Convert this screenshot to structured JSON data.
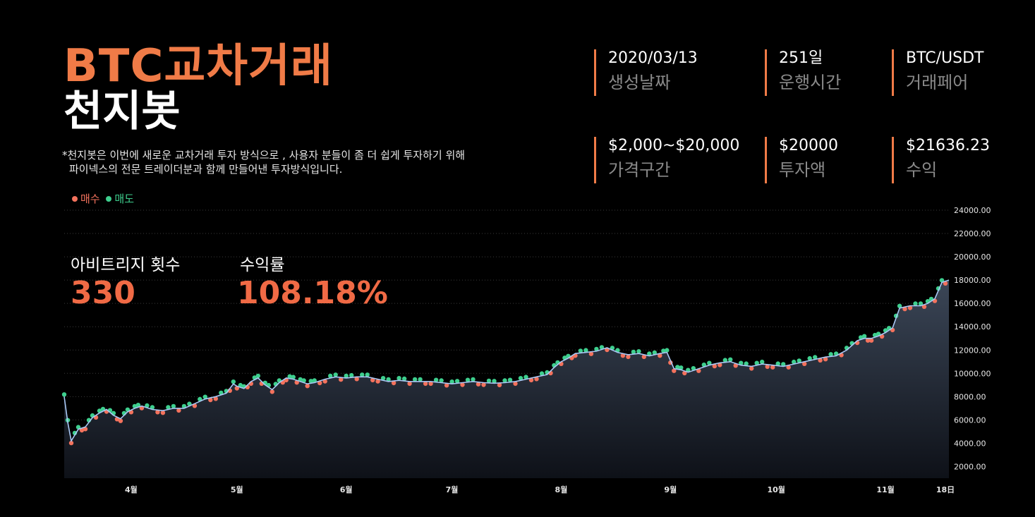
{
  "header": {
    "title_line1": "BTC교차거래",
    "title_line2": "천지봇",
    "description_line1": "*천지봇은 이번에 새로운 교차거래 투자 방식으로  , 사용자 분들이 좀 더 쉽게 투자하기 위해",
    "description_line2": "파이넥스의 전문 트레이더분과 함께 만들어낸 투자방식입니다."
  },
  "stats": [
    {
      "value": "2020/03/13",
      "label": "생성날짜"
    },
    {
      "value": "251일",
      "label": "운행시간"
    },
    {
      "value": "BTC/USDT",
      "label": "거래페어"
    },
    {
      "value": "$2,000~$20,000",
      "label": "가격구간"
    },
    {
      "value": "$20000",
      "label": "투자액"
    },
    {
      "value": "$21636.23",
      "label": "수익"
    }
  ],
  "legend": {
    "buy": "매수",
    "sell": "매도",
    "buy_color": "#f3725d",
    "sell_color": "#3ecf8e"
  },
  "metrics": {
    "arbitrage_label": "아비트리지 횟수",
    "arbitrage_value": "330",
    "return_label": "수익률",
    "return_value": "108.18%"
  },
  "colors": {
    "accent": "#f07b47",
    "line": "#a9c8f5",
    "area_top": "#3b4657",
    "area_bottom": "#0e1118"
  },
  "chart_data": {
    "type": "area",
    "title": "",
    "ylim": [
      1000,
      24000
    ],
    "y_ticks": [
      "24000.00",
      "22000.00",
      "20000.00",
      "18000.00",
      "16000.00",
      "14000.00",
      "12000.00",
      "10000.00",
      "8000.00",
      "6000.00",
      "4000.00",
      "2000.00"
    ],
    "x_ticks": [
      "4월",
      "5월",
      "6월",
      "7월",
      "8월",
      "9월",
      "10월",
      "11월",
      "18日"
    ],
    "x_tick_days": [
      19,
      49,
      80,
      110,
      141,
      172,
      202,
      233,
      250
    ],
    "x_range_days": [
      0,
      251
    ],
    "series": [
      {
        "x_days": [
          0,
          1,
          2,
          4,
          6,
          8,
          10,
          12,
          14,
          16,
          18,
          20,
          22,
          25,
          28,
          31,
          34,
          37,
          40,
          43,
          46,
          48,
          49,
          51,
          53,
          55,
          57,
          59,
          61,
          63,
          65,
          67,
          69,
          71,
          74,
          77,
          80,
          83,
          86,
          89,
          92,
          95,
          98,
          101,
          104,
          107,
          110,
          113,
          116,
          119,
          122,
          125,
          128,
          131,
          134,
          137,
          139,
          141,
          143,
          145,
          148,
          151,
          154,
          157,
          160,
          163,
          166,
          169,
          171,
          173,
          175,
          177,
          180,
          183,
          186,
          189,
          192,
          195,
          198,
          201,
          204,
          207,
          210,
          213,
          216,
          219,
          222,
          225,
          227,
          229,
          231,
          233,
          235,
          237,
          240,
          243,
          245,
          247,
          249,
          251
        ],
        "values": [
          8000,
          5800,
          4200,
          5200,
          5400,
          6200,
          6600,
          6900,
          6400,
          6100,
          6700,
          7000,
          7200,
          6900,
          6800,
          7000,
          7000,
          7400,
          7800,
          8000,
          8300,
          9100,
          8900,
          8700,
          9300,
          9600,
          9000,
          8600,
          9200,
          9600,
          9500,
          9300,
          9100,
          9200,
          9500,
          9700,
          9600,
          9700,
          9700,
          9500,
          9300,
          9400,
          9300,
          9300,
          9300,
          9200,
          9100,
          9200,
          9300,
          9200,
          9150,
          9200,
          9300,
          9500,
          9700,
          9900,
          10500,
          11000,
          11300,
          11700,
          11800,
          11900,
          12200,
          11800,
          11600,
          11700,
          11500,
          11700,
          11800,
          10400,
          10300,
          10100,
          10400,
          10700,
          10900,
          11000,
          10700,
          10600,
          10800,
          10700,
          10600,
          10800,
          11000,
          11200,
          11400,
          11500,
          12000,
          12800,
          13000,
          13000,
          13200,
          13500,
          13900,
          15600,
          15800,
          15800,
          16000,
          16400,
          17800,
          18000
        ]
      }
    ]
  }
}
